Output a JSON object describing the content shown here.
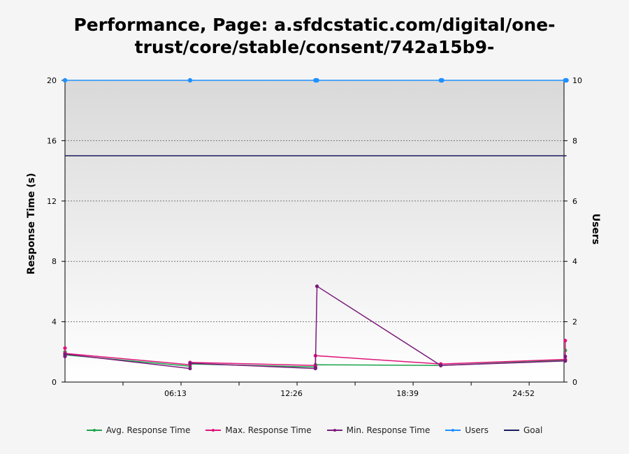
{
  "title_lines": [
    "Performance, Page: a.sfdcstatic.com/digital/one-",
    "trust/core/stable/consent/742a15b9-"
  ],
  "chart_data": {
    "type": "line",
    "title": "Performance, Page: a.sfdcstatic.com/digital/one-trust/core/stable/consent/742a15b9-",
    "xlabel": "",
    "ylabel": "Response Time (s)",
    "y2label": "Users",
    "xlim": [
      0,
      1604
    ],
    "ylim": [
      0,
      20
    ],
    "y2lim": [
      0,
      10
    ],
    "yticks": [
      "0",
      "4",
      "8",
      "12",
      "16",
      "20"
    ],
    "y2ticks": [
      "0",
      "2",
      "4",
      "6",
      "8",
      "10"
    ],
    "xticks": [
      {
        "t": 373,
        "label": "06:13"
      },
      {
        "t": 746,
        "label": "12:26"
      },
      {
        "t": 1119,
        "label": "18:39"
      },
      {
        "t": 1492,
        "label": "24:52"
      }
    ],
    "grid": true,
    "legend_position": "bottom",
    "series": [
      {
        "name": "Avg. Response Time",
        "color": "#1aa34a",
        "axis": "left",
        "points": [
          [
            0,
            2.0
          ],
          [
            0,
            1.8
          ],
          [
            402,
            1.05
          ],
          [
            402,
            1.2
          ],
          [
            805,
            1.0
          ],
          [
            805,
            1.15
          ],
          [
            1208,
            1.1
          ],
          [
            1608,
            1.45
          ],
          [
            1608,
            2.1
          ]
        ]
      },
      {
        "name": "Max. Response Time",
        "color": "#e0157a",
        "axis": "left",
        "points": [
          [
            0,
            2.25
          ],
          [
            0,
            1.9
          ],
          [
            402,
            1.15
          ],
          [
            402,
            1.3
          ],
          [
            805,
            1.1
          ],
          [
            805,
            1.75
          ],
          [
            1208,
            1.2
          ],
          [
            1608,
            1.5
          ],
          [
            1608,
            2.75
          ]
        ]
      },
      {
        "name": "Min. Response Time",
        "color": "#7a1a7a",
        "axis": "left",
        "points": [
          [
            0,
            1.7
          ],
          [
            0,
            1.85
          ],
          [
            402,
            0.9
          ],
          [
            402,
            1.25
          ],
          [
            805,
            0.9
          ],
          [
            805,
            0.95
          ],
          [
            810,
            6.35
          ],
          [
            1208,
            1.1
          ],
          [
            1608,
            1.4
          ],
          [
            1608,
            1.7
          ]
        ]
      },
      {
        "name": "Users",
        "color": "#1e90ff",
        "axis": "right",
        "points": [
          [
            0,
            10
          ],
          [
            402,
            10
          ],
          [
            805,
            10
          ],
          [
            810,
            10
          ],
          [
            1208,
            10
          ],
          [
            1212,
            10
          ],
          [
            1608,
            10
          ],
          [
            1612,
            10
          ]
        ]
      },
      {
        "name": "Goal",
        "color": "#1b1b5e",
        "axis": "left",
        "points": [
          [
            0,
            15
          ],
          [
            1612,
            15
          ]
        ]
      }
    ]
  }
}
